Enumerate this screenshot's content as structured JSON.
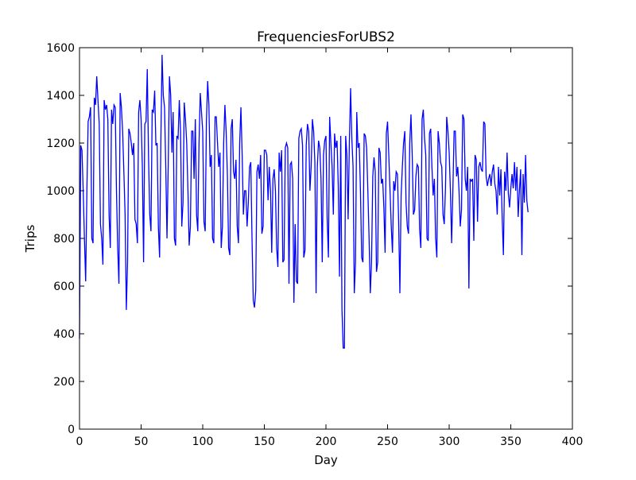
{
  "chart_data": {
    "type": "line",
    "title": "FrequenciesForUBS2",
    "x_label": "Day",
    "y_label": "Trips",
    "color": "#0000ff",
    "values": [
      380,
      1190,
      1170,
      1000,
      800,
      620,
      1000,
      1290,
      1310,
      1350,
      800,
      780,
      1390,
      1360,
      1480,
      1380,
      1280,
      860,
      800,
      690,
      1380,
      1340,
      1360,
      1300,
      900,
      760,
      1340,
      1280,
      1360,
      1350,
      1000,
      760,
      610,
      1410,
      1350,
      1250,
      1080,
      900,
      500,
      700,
      1260,
      1240,
      1200,
      1150,
      1200,
      880,
      860,
      780,
      1330,
      1380,
      1300,
      1100,
      700,
      1280,
      1290,
      1510,
      1150,
      900,
      830,
      1340,
      1330,
      1420,
      1190,
      1200,
      850,
      720,
      1200,
      1570,
      1400,
      1350,
      1100,
      800,
      1100,
      1480,
      1400,
      1160,
      1330,
      800,
      770,
      1230,
      1220,
      1380,
      1250,
      850,
      950,
      1370,
      1300,
      1200,
      1000,
      770,
      850,
      1250,
      1250,
      1050,
      1300,
      900,
      830,
      1200,
      1410,
      1330,
      1250,
      870,
      830,
      1290,
      1460,
      1360,
      1100,
      1150,
      800,
      780,
      1310,
      1310,
      1200,
      1100,
      1160,
      760,
      850,
      1200,
      1360,
      1250,
      1070,
      760,
      730,
      1260,
      1300,
      1080,
      1050,
      1130,
      850,
      780,
      1200,
      1350,
      1150,
      900,
      1000,
      1000,
      850,
      950,
      1100,
      1120,
      800,
      540,
      510,
      580,
      1080,
      1110,
      1050,
      1150,
      820,
      850,
      1170,
      1170,
      1150,
      960,
      1100,
      1000,
      740,
      1050,
      1090,
      1000,
      760,
      680,
      1160,
      1080,
      1170,
      700,
      710,
      1180,
      1200,
      1180,
      610,
      1110,
      1120,
      1050,
      530,
      860,
      620,
      610,
      1220,
      1250,
      1260,
      1190,
      720,
      750,
      1190,
      1280,
      1250,
      1000,
      1100,
      1300,
      1250,
      1120,
      570,
      1100,
      1210,
      1180,
      1050,
      700,
      1150,
      1210,
      1230,
      880,
      720,
      1310,
      1200,
      1100,
      900,
      1240,
      1180,
      1210,
      1020,
      640,
      1230,
      500,
      340,
      340,
      1230,
      1150,
      880,
      1200,
      1430,
      1220,
      1100,
      570,
      700,
      1330,
      1180,
      1200,
      1000,
      720,
      700,
      1240,
      1230,
      1180,
      1000,
      800,
      570,
      700,
      1060,
      1140,
      1080,
      660,
      700,
      1180,
      1160,
      1030,
      1050,
      930,
      740,
      1240,
      1290,
      1150,
      1000,
      850,
      740,
      1040,
      1000,
      1080,
      1070,
      870,
      570,
      980,
      1100,
      1200,
      1250,
      950,
      850,
      820,
      1200,
      1320,
      1150,
      900,
      920,
      1060,
      1110,
      1100,
      840,
      760,
      1300,
      1340,
      1220,
      1150,
      800,
      790,
      1240,
      1260,
      1100,
      980,
      1050,
      800,
      720,
      1250,
      1200,
      1120,
      1100,
      900,
      860,
      1010,
      1310,
      1250,
      1160,
      1000,
      780,
      1000,
      1250,
      1250,
      1060,
      1100,
      1000,
      850,
      920,
      1320,
      1300,
      1050,
      1000,
      1100,
      590,
      1050,
      1040,
      1050,
      790,
      1150,
      1130,
      870,
      1100,
      1120,
      1090,
      1080,
      1290,
      1280,
      1060,
      1020,
      1050,
      1070,
      1020,
      1080,
      1110,
      1030,
      1000,
      900,
      1100,
      980,
      1090,
      890,
      730,
      1080,
      1000,
      1160,
      990,
      930,
      1010,
      1070,
      1010,
      1120,
      1000,
      1100,
      890,
      1000,
      1090,
      730,
      1070,
      950,
      1150,
      960,
      910
    ],
    "xlim": [
      0,
      400
    ],
    "xticks": [
      0,
      50,
      100,
      150,
      200,
      250,
      300,
      350,
      400
    ],
    "ylim": [
      0,
      1600
    ],
    "yticks": [
      0,
      200,
      400,
      600,
      800,
      1000,
      1200,
      1400,
      1600
    ]
  }
}
